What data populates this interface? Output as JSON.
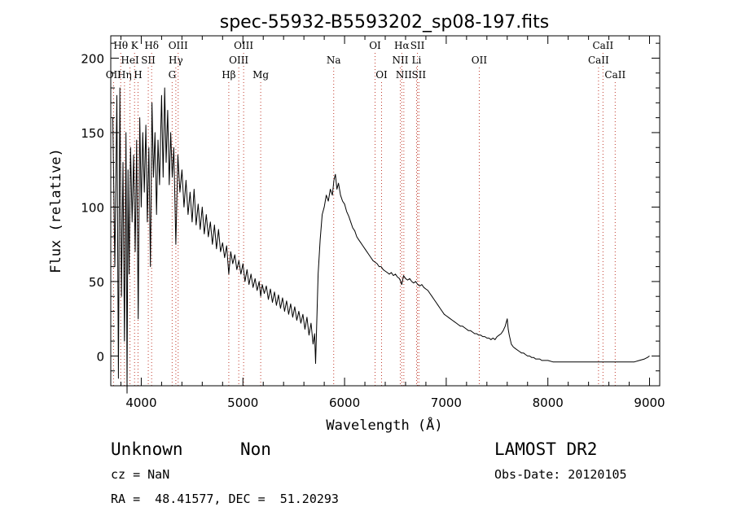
{
  "chart_data": {
    "type": "line",
    "title": "spec-55932-B5593202_sp08-197.fits",
    "xlabel": "Wavelength (Å)",
    "ylabel": "Flux (relative)",
    "xlim": [
      3700,
      9100
    ],
    "ylim": [
      -20,
      215
    ],
    "xticks": [
      4000,
      5000,
      6000,
      7000,
      8000,
      9000
    ],
    "yticks": [
      0,
      50,
      100,
      150,
      200
    ],
    "grid": false,
    "legend": "none",
    "series": [
      {
        "color": "#000000",
        "points": [
          [
            3720,
            160
          ],
          [
            3740,
            60
          ],
          [
            3760,
            175
          ],
          [
            3775,
            -15
          ],
          [
            3790,
            180
          ],
          [
            3805,
            40
          ],
          [
            3820,
            130
          ],
          [
            3835,
            10
          ],
          [
            3850,
            150
          ],
          [
            3860,
            -25
          ],
          [
            3870,
            125
          ],
          [
            3880,
            55
          ],
          [
            3895,
            140
          ],
          [
            3910,
            90
          ],
          [
            3925,
            135
          ],
          [
            3940,
            70
          ],
          [
            3955,
            145
          ],
          [
            3970,
            25
          ],
          [
            3985,
            160
          ],
          [
            4000,
            100
          ],
          [
            4015,
            150
          ],
          [
            4030,
            110
          ],
          [
            4045,
            155
          ],
          [
            4060,
            90
          ],
          [
            4075,
            140
          ],
          [
            4090,
            60
          ],
          [
            4105,
            170
          ],
          [
            4120,
            120
          ],
          [
            4135,
            150
          ],
          [
            4150,
            95
          ],
          [
            4165,
            145
          ],
          [
            4180,
            115
          ],
          [
            4200,
            175
          ],
          [
            4215,
            120
          ],
          [
            4230,
            180
          ],
          [
            4245,
            130
          ],
          [
            4260,
            165
          ],
          [
            4275,
            115
          ],
          [
            4290,
            150
          ],
          [
            4305,
            120
          ],
          [
            4320,
            140
          ],
          [
            4340,
            75
          ],
          [
            4360,
            135
          ],
          [
            4380,
            110
          ],
          [
            4400,
            125
          ],
          [
            4420,
            100
          ],
          [
            4440,
            118
          ],
          [
            4460,
            95
          ],
          [
            4480,
            110
          ],
          [
            4500,
            90
          ],
          [
            4520,
            112
          ],
          [
            4540,
            88
          ],
          [
            4560,
            102
          ],
          [
            4580,
            85
          ],
          [
            4600,
            100
          ],
          [
            4620,
            82
          ],
          [
            4640,
            95
          ],
          [
            4660,
            80
          ],
          [
            4680,
            90
          ],
          [
            4700,
            75
          ],
          [
            4720,
            88
          ],
          [
            4740,
            72
          ],
          [
            4760,
            85
          ],
          [
            4780,
            70
          ],
          [
            4800,
            76
          ],
          [
            4820,
            66
          ],
          [
            4840,
            74
          ],
          [
            4861,
            55
          ],
          [
            4880,
            70
          ],
          [
            4900,
            62
          ],
          [
            4920,
            68
          ],
          [
            4940,
            58
          ],
          [
            4960,
            64
          ],
          [
            4980,
            55
          ],
          [
            5000,
            62
          ],
          [
            5020,
            50
          ],
          [
            5040,
            58
          ],
          [
            5060,
            48
          ],
          [
            5080,
            55
          ],
          [
            5100,
            46
          ],
          [
            5120,
            52
          ],
          [
            5140,
            44
          ],
          [
            5160,
            50
          ],
          [
            5175,
            40
          ],
          [
            5190,
            48
          ],
          [
            5210,
            42
          ],
          [
            5230,
            47
          ],
          [
            5250,
            38
          ],
          [
            5270,
            45
          ],
          [
            5290,
            36
          ],
          [
            5310,
            43
          ],
          [
            5330,
            34
          ],
          [
            5350,
            41
          ],
          [
            5370,
            32
          ],
          [
            5390,
            39
          ],
          [
            5410,
            30
          ],
          [
            5430,
            37
          ],
          [
            5450,
            28
          ],
          [
            5470,
            35
          ],
          [
            5490,
            26
          ],
          [
            5510,
            33
          ],
          [
            5530,
            24
          ],
          [
            5550,
            30
          ],
          [
            5570,
            22
          ],
          [
            5590,
            28
          ],
          [
            5610,
            18
          ],
          [
            5630,
            26
          ],
          [
            5650,
            14
          ],
          [
            5670,
            22
          ],
          [
            5690,
            8
          ],
          [
            5705,
            15
          ],
          [
            5715,
            -5
          ],
          [
            5725,
            20
          ],
          [
            5740,
            55
          ],
          [
            5760,
            78
          ],
          [
            5780,
            95
          ],
          [
            5800,
            100
          ],
          [
            5820,
            108
          ],
          [
            5840,
            104
          ],
          [
            5860,
            112
          ],
          [
            5880,
            108
          ],
          [
            5895,
            118
          ],
          [
            5910,
            122
          ],
          [
            5925,
            112
          ],
          [
            5940,
            116
          ],
          [
            5960,
            108
          ],
          [
            5980,
            104
          ],
          [
            6000,
            102
          ],
          [
            6020,
            97
          ],
          [
            6040,
            94
          ],
          [
            6060,
            90
          ],
          [
            6080,
            86
          ],
          [
            6100,
            84
          ],
          [
            6120,
            80
          ],
          [
            6140,
            78
          ],
          [
            6160,
            76
          ],
          [
            6180,
            74
          ],
          [
            6200,
            72
          ],
          [
            6220,
            70
          ],
          [
            6240,
            68
          ],
          [
            6260,
            66
          ],
          [
            6280,
            64
          ],
          [
            6300,
            63
          ],
          [
            6320,
            62
          ],
          [
            6340,
            60
          ],
          [
            6360,
            60
          ],
          [
            6380,
            58
          ],
          [
            6400,
            57
          ],
          [
            6420,
            56
          ],
          [
            6440,
            55
          ],
          [
            6460,
            56
          ],
          [
            6480,
            54
          ],
          [
            6500,
            55
          ],
          [
            6520,
            53
          ],
          [
            6540,
            52
          ],
          [
            6563,
            48
          ],
          [
            6580,
            54
          ],
          [
            6600,
            52
          ],
          [
            6620,
            51
          ],
          [
            6640,
            52
          ],
          [
            6660,
            50
          ],
          [
            6680,
            49
          ],
          [
            6700,
            50
          ],
          [
            6720,
            48
          ],
          [
            6740,
            47
          ],
          [
            6760,
            48
          ],
          [
            6780,
            46
          ],
          [
            6800,
            45
          ],
          [
            6820,
            44
          ],
          [
            6840,
            42
          ],
          [
            6860,
            40
          ],
          [
            6880,
            38
          ],
          [
            6900,
            36
          ],
          [
            6920,
            34
          ],
          [
            6940,
            32
          ],
          [
            6960,
            30
          ],
          [
            6980,
            28
          ],
          [
            7000,
            27
          ],
          [
            7020,
            26
          ],
          [
            7040,
            25
          ],
          [
            7060,
            24
          ],
          [
            7080,
            23
          ],
          [
            7100,
            22
          ],
          [
            7120,
            21
          ],
          [
            7140,
            20
          ],
          [
            7160,
            20
          ],
          [
            7180,
            19
          ],
          [
            7200,
            18
          ],
          [
            7220,
            17
          ],
          [
            7240,
            17
          ],
          [
            7260,
            16
          ],
          [
            7280,
            15
          ],
          [
            7300,
            15
          ],
          [
            7320,
            14
          ],
          [
            7340,
            14
          ],
          [
            7360,
            13
          ],
          [
            7380,
            13
          ],
          [
            7400,
            12
          ],
          [
            7420,
            12
          ],
          [
            7440,
            11
          ],
          [
            7460,
            12
          ],
          [
            7480,
            11
          ],
          [
            7500,
            13
          ],
          [
            7520,
            14
          ],
          [
            7540,
            15
          ],
          [
            7560,
            17
          ],
          [
            7580,
            20
          ],
          [
            7600,
            25
          ],
          [
            7610,
            18
          ],
          [
            7620,
            14
          ],
          [
            7640,
            8
          ],
          [
            7660,
            6
          ],
          [
            7680,
            5
          ],
          [
            7700,
            4
          ],
          [
            7720,
            3
          ],
          [
            7740,
            2
          ],
          [
            7760,
            2
          ],
          [
            7780,
            1
          ],
          [
            7800,
            0
          ],
          [
            7820,
            0
          ],
          [
            7840,
            -1
          ],
          [
            7860,
            -1
          ],
          [
            7880,
            -2
          ],
          [
            7900,
            -2
          ],
          [
            7920,
            -2
          ],
          [
            7940,
            -3
          ],
          [
            7960,
            -3
          ],
          [
            7980,
            -3
          ],
          [
            8000,
            -3
          ],
          [
            8050,
            -4
          ],
          [
            8100,
            -4
          ],
          [
            8150,
            -4
          ],
          [
            8200,
            -4
          ],
          [
            8250,
            -4
          ],
          [
            8300,
            -4
          ],
          [
            8350,
            -4
          ],
          [
            8400,
            -4
          ],
          [
            8450,
            -4
          ],
          [
            8500,
            -4
          ],
          [
            8550,
            -4
          ],
          [
            8600,
            -4
          ],
          [
            8650,
            -4
          ],
          [
            8700,
            -4
          ],
          [
            8750,
            -4
          ],
          [
            8800,
            -4
          ],
          [
            8850,
            -4
          ],
          [
            8900,
            -3
          ],
          [
            8950,
            -2
          ],
          [
            8980,
            -1
          ],
          [
            9000,
            0
          ]
        ]
      }
    ],
    "line_markers": [
      {
        "label": "Hθ",
        "x": 3798,
        "row": 0
      },
      {
        "label": "K",
        "x": 3934,
        "row": 0
      },
      {
        "label": "Hδ",
        "x": 4102,
        "row": 0
      },
      {
        "label": "OIII",
        "x": 4363,
        "row": 0
      },
      {
        "label": "OIII",
        "x": 5007,
        "row": 0
      },
      {
        "label": "OI",
        "x": 6300,
        "row": 0
      },
      {
        "label": "Hα",
        "x": 6563,
        "row": 0
      },
      {
        "label": "SII",
        "x": 6717,
        "row": 0
      },
      {
        "label": "CaII",
        "x": 8542,
        "row": 0
      },
      {
        "label": "HeI",
        "x": 3889,
        "row": 1
      },
      {
        "label": "SII",
        "x": 4069,
        "row": 1
      },
      {
        "label": "Hγ",
        "x": 4340,
        "row": 1
      },
      {
        "label": "OIII",
        "x": 4959,
        "row": 1
      },
      {
        "label": "Na",
        "x": 5893,
        "row": 1
      },
      {
        "label": "NII",
        "x": 6548,
        "row": 1
      },
      {
        "label": "Li",
        "x": 6708,
        "row": 1
      },
      {
        "label": "OII",
        "x": 7325,
        "row": 1
      },
      {
        "label": "CaII",
        "x": 8498,
        "row": 1
      },
      {
        "label": "OII",
        "x": 3727,
        "row": 2
      },
      {
        "label": "Hη",
        "x": 3835,
        "row": 2
      },
      {
        "label": "H",
        "x": 3968,
        "row": 2
      },
      {
        "label": "G",
        "x": 4304,
        "row": 2
      },
      {
        "label": "Hβ",
        "x": 4861,
        "row": 2
      },
      {
        "label": "Mg",
        "x": 5175,
        "row": 2
      },
      {
        "label": "OI",
        "x": 6364,
        "row": 2
      },
      {
        "label": "NII",
        "x": 6583,
        "row": 2
      },
      {
        "label": "SII",
        "x": 6731,
        "row": 2
      },
      {
        "label": "CaII",
        "x": 8662,
        "row": 2
      }
    ]
  },
  "info": {
    "class_label": "Unknown",
    "subclass_label": "Non",
    "survey_label": "LAMOST DR2",
    "cz_text": "cz = NaN",
    "obs_date_text": "Obs-Date: 20120105",
    "radec_text": "RA =  48.41577, DEC =  51.20293"
  }
}
